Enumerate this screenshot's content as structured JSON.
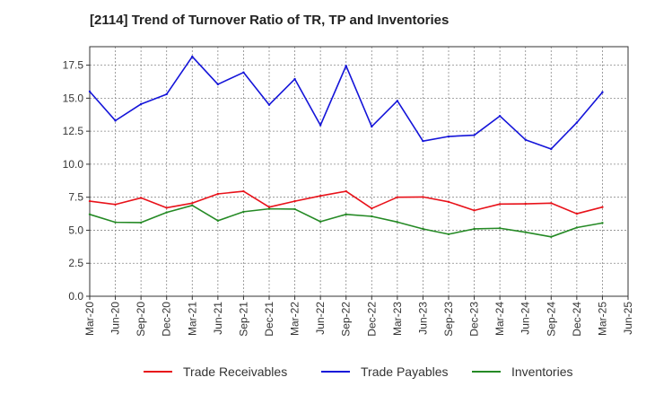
{
  "chart_data": {
    "type": "line",
    "title": "[2114]  Trend of Turnover Ratio of TR, TP and Inventories",
    "xlabel": "",
    "ylabel": "",
    "ylim": [
      0,
      17.5
    ],
    "y_ticks": [
      "0.0",
      "2.5",
      "5.0",
      "7.5",
      "10.0",
      "12.5",
      "15.0",
      "17.5"
    ],
    "x": [
      "Mar-20",
      "Jun-20",
      "Sep-20",
      "Dec-20",
      "Mar-21",
      "Jun-21",
      "Sep-21",
      "Dec-21",
      "Mar-22",
      "Jun-22",
      "Sep-22",
      "Dec-22",
      "Mar-23",
      "Jun-23",
      "Sep-23",
      "Dec-23",
      "Mar-24",
      "Jun-24",
      "Sep-24",
      "Dec-24",
      "Mar-25",
      "Jun-25"
    ],
    "grid": true,
    "legend_position": "bottom",
    "series": [
      {
        "name": "Trade Receivables",
        "color": "#e8121a",
        "values": [
          7.2,
          6.95,
          7.45,
          6.7,
          7.05,
          7.75,
          7.95,
          6.75,
          7.2,
          7.6,
          7.95,
          6.65,
          7.5,
          7.52,
          7.15,
          6.5,
          6.98,
          7.0,
          7.05,
          6.25,
          6.75,
          null
        ]
      },
      {
        "name": "Trade Payables",
        "color": "#1414d9",
        "values": [
          15.5,
          13.3,
          14.55,
          15.3,
          18.15,
          16.05,
          16.95,
          14.5,
          16.45,
          12.95,
          17.45,
          12.85,
          14.8,
          11.75,
          12.1,
          12.2,
          13.65,
          11.85,
          11.15,
          13.15,
          15.45,
          null
        ]
      },
      {
        "name": "Inventories",
        "color": "#258a25",
        "values": [
          6.2,
          5.6,
          5.58,
          6.35,
          6.88,
          5.72,
          6.4,
          6.62,
          6.6,
          5.65,
          6.2,
          6.05,
          5.62,
          5.1,
          4.7,
          5.1,
          5.15,
          4.85,
          4.5,
          5.2,
          5.55,
          null
        ]
      }
    ]
  }
}
